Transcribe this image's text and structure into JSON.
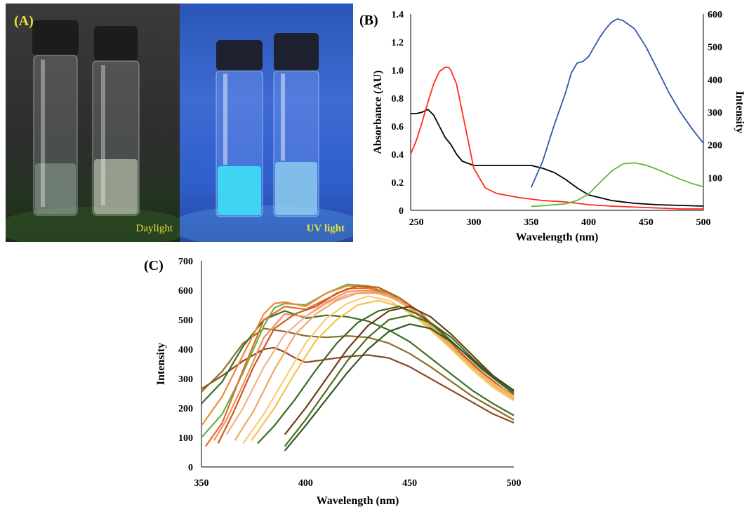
{
  "panels": {
    "a": {
      "tag": "(A)",
      "daylight_caption": "Daylight",
      "uv_caption": "UV light"
    },
    "b": {
      "tag": "(B)"
    },
    "c": {
      "tag": "(C)"
    }
  },
  "chart_data": [
    {
      "type": "line",
      "panel": "B",
      "title": "",
      "xlabel": "Wavelength (nm)",
      "ylabel": "Absorbance (AU)",
      "y2label": "Intensity",
      "xlim": [
        245,
        500
      ],
      "ylim": [
        0,
        1.4
      ],
      "y2lim": [
        0,
        600
      ],
      "xticks": [
        250,
        300,
        350,
        400,
        450,
        500
      ],
      "yticks": [
        "0",
        "0.2",
        "0.4",
        "0.6",
        "0.8",
        "1.0",
        "1.2",
        "1.4"
      ],
      "y2ticks": [
        "100",
        "200",
        "300",
        "400",
        "500",
        "600"
      ],
      "grid": false,
      "series": [
        {
          "color": "#000000",
          "axis": "left",
          "x": [
            245,
            250,
            255,
            260,
            265,
            270,
            275,
            280,
            285,
            290,
            300,
            320,
            340,
            350,
            360,
            370,
            380,
            390,
            400,
            420,
            440,
            460,
            480,
            500
          ],
          "y": [
            0.69,
            0.69,
            0.7,
            0.72,
            0.68,
            0.6,
            0.52,
            0.47,
            0.4,
            0.35,
            0.32,
            0.32,
            0.32,
            0.32,
            0.3,
            0.27,
            0.22,
            0.16,
            0.11,
            0.07,
            0.05,
            0.04,
            0.035,
            0.03
          ]
        },
        {
          "color": "#ff2a1a",
          "axis": "left",
          "x": [
            245,
            250,
            255,
            260,
            265,
            270,
            275,
            278,
            280,
            285,
            290,
            295,
            300,
            310,
            320,
            340,
            360,
            380,
            400,
            420,
            450,
            480,
            500
          ],
          "y": [
            0.4,
            0.5,
            0.63,
            0.77,
            0.9,
            0.99,
            1.02,
            1.02,
            1.0,
            0.9,
            0.7,
            0.5,
            0.3,
            0.16,
            0.12,
            0.09,
            0.07,
            0.06,
            0.04,
            0.03,
            0.02,
            0.01,
            0.01
          ]
        },
        {
          "color": "#3355aa",
          "axis": "right",
          "x": [
            350,
            360,
            370,
            380,
            385,
            390,
            395,
            400,
            405,
            410,
            415,
            420,
            425,
            430,
            440,
            450,
            460,
            470,
            480,
            490,
            500
          ],
          "y": [
            70,
            150,
            260,
            360,
            420,
            450,
            455,
            470,
            500,
            530,
            555,
            575,
            585,
            580,
            555,
            500,
            430,
            360,
            300,
            250,
            205
          ]
        },
        {
          "color": "#5cb838",
          "axis": "right",
          "x": [
            350,
            360,
            380,
            390,
            400,
            410,
            420,
            430,
            440,
            450,
            460,
            470,
            480,
            490,
            500
          ],
          "y": [
            12,
            14,
            20,
            30,
            50,
            85,
            120,
            142,
            145,
            138,
            125,
            110,
            95,
            82,
            72
          ]
        }
      ]
    },
    {
      "type": "line",
      "panel": "C",
      "title": "",
      "xlabel": "Wavelength (nm)",
      "ylabel": "Intensity",
      "xlim": [
        350,
        500
      ],
      "ylim": [
        0,
        700
      ],
      "xticks": [
        350,
        400,
        450,
        500
      ],
      "yticks": [
        0,
        100,
        200,
        300,
        400,
        500,
        600,
        700
      ],
      "grid": false,
      "series": [
        {
          "color": "#8a4b22",
          "x": [
            350,
            360,
            370,
            380,
            385,
            390,
            395,
            400,
            410,
            420,
            430,
            440,
            450,
            460,
            470,
            480,
            490,
            500
          ],
          "y": [
            265,
            310,
            360,
            400,
            405,
            390,
            370,
            355,
            365,
            375,
            380,
            370,
            340,
            300,
            260,
            220,
            180,
            150
          ]
        },
        {
          "color": "#8a6e2a",
          "x": [
            350,
            360,
            370,
            380,
            390,
            400,
            410,
            420,
            430,
            440,
            450,
            460,
            470,
            480,
            490,
            500
          ],
          "y": [
            255,
            325,
            420,
            470,
            460,
            445,
            440,
            445,
            440,
            420,
            385,
            340,
            290,
            240,
            200,
            160
          ]
        },
        {
          "color": "#3e6e28",
          "x": [
            350,
            360,
            370,
            380,
            390,
            400,
            410,
            420,
            430,
            440,
            450,
            460,
            470,
            480,
            490,
            500
          ],
          "y": [
            215,
            290,
            410,
            500,
            530,
            505,
            515,
            510,
            495,
            465,
            425,
            370,
            315,
            260,
            215,
            175
          ]
        },
        {
          "color": "#66b548",
          "x": [
            350,
            360,
            370,
            380,
            385,
            390,
            400,
            410,
            420,
            430,
            440,
            450,
            460,
            470,
            480,
            490,
            500
          ],
          "y": [
            100,
            180,
            320,
            480,
            540,
            555,
            550,
            590,
            620,
            615,
            590,
            545,
            480,
            410,
            340,
            280,
            230
          ]
        },
        {
          "color": "#f08a3a",
          "x": [
            350,
            360,
            370,
            380,
            385,
            390,
            400,
            410,
            420,
            430,
            440,
            450,
            460,
            470,
            480,
            490,
            500
          ],
          "y": [
            140,
            240,
            380,
            520,
            555,
            560,
            545,
            590,
            615,
            612,
            585,
            540,
            480,
            405,
            340,
            280,
            235
          ]
        },
        {
          "color": "#e86a24",
          "x": [
            352,
            360,
            370,
            380,
            390,
            400,
            410,
            420,
            430,
            440,
            450,
            460,
            470,
            480,
            490,
            500
          ],
          "y": [
            70,
            150,
            330,
            500,
            545,
            535,
            570,
            605,
            608,
            585,
            545,
            480,
            410,
            345,
            285,
            240
          ]
        },
        {
          "color": "#f29060",
          "x": [
            356,
            362,
            370,
            380,
            390,
            400,
            410,
            420,
            430,
            440,
            450,
            460,
            470,
            480,
            490,
            500
          ],
          "y": [
            90,
            160,
            280,
            440,
            520,
            510,
            560,
            595,
            600,
            585,
            545,
            480,
            410,
            345,
            285,
            240
          ]
        },
        {
          "color": "#c85a1c",
          "x": [
            358,
            365,
            375,
            385,
            395,
            405,
            415,
            425,
            435,
            445,
            455,
            465,
            475,
            485,
            495,
            500
          ],
          "y": [
            80,
            180,
            340,
            470,
            520,
            545,
            590,
            615,
            610,
            575,
            525,
            455,
            385,
            320,
            265,
            245
          ]
        },
        {
          "color": "#f5b08a",
          "x": [
            362,
            370,
            380,
            390,
            400,
            410,
            420,
            430,
            440,
            450,
            460,
            470,
            480,
            490,
            500
          ],
          "y": [
            110,
            200,
            340,
            450,
            510,
            555,
            585,
            595,
            580,
            540,
            475,
            405,
            340,
            285,
            240
          ]
        },
        {
          "color": "#f0a862",
          "x": [
            366,
            375,
            385,
            395,
            405,
            415,
            425,
            435,
            445,
            455,
            465,
            475,
            485,
            495,
            500
          ],
          "y": [
            90,
            190,
            330,
            450,
            520,
            565,
            590,
            590,
            565,
            510,
            440,
            370,
            305,
            250,
            230
          ]
        },
        {
          "color": "#f7cd74",
          "x": [
            370,
            380,
            390,
            400,
            410,
            420,
            430,
            440,
            450,
            460,
            470,
            480,
            490,
            500
          ],
          "y": [
            80,
            180,
            300,
            420,
            505,
            555,
            580,
            565,
            525,
            465,
            400,
            330,
            270,
            225
          ]
        },
        {
          "color": "#f6c14e",
          "x": [
            374,
            385,
            395,
            405,
            415,
            425,
            435,
            445,
            455,
            465,
            475,
            485,
            495,
            500
          ],
          "y": [
            90,
            200,
            320,
            430,
            500,
            550,
            565,
            545,
            500,
            435,
            370,
            305,
            255,
            235
          ]
        },
        {
          "color": "#3a6a22",
          "x": [
            377,
            385,
            395,
            405,
            415,
            425,
            435,
            445,
            455,
            465,
            475,
            485,
            495,
            500
          ],
          "y": [
            80,
            140,
            230,
            330,
            420,
            490,
            530,
            545,
            515,
            460,
            395,
            330,
            275,
            250
          ]
        },
        {
          "color": "#6e3b1a",
          "x": [
            390,
            400,
            410,
            420,
            430,
            440,
            450,
            460,
            470,
            480,
            490,
            500
          ],
          "y": [
            110,
            200,
            300,
            400,
            480,
            530,
            545,
            510,
            450,
            380,
            310,
            260
          ]
        },
        {
          "color": "#4a6e20",
          "x": [
            390,
            400,
            410,
            420,
            430,
            440,
            450,
            460,
            470,
            480,
            490,
            500
          ],
          "y": [
            70,
            160,
            260,
            360,
            440,
            500,
            515,
            490,
            440,
            370,
            305,
            255
          ]
        },
        {
          "color": "#2f5a22",
          "x": [
            390,
            400,
            410,
            420,
            430,
            440,
            450,
            460,
            470,
            480,
            490,
            500
          ],
          "y": [
            55,
            140,
            230,
            320,
            400,
            460,
            485,
            470,
            425,
            365,
            305,
            260
          ]
        }
      ]
    }
  ]
}
